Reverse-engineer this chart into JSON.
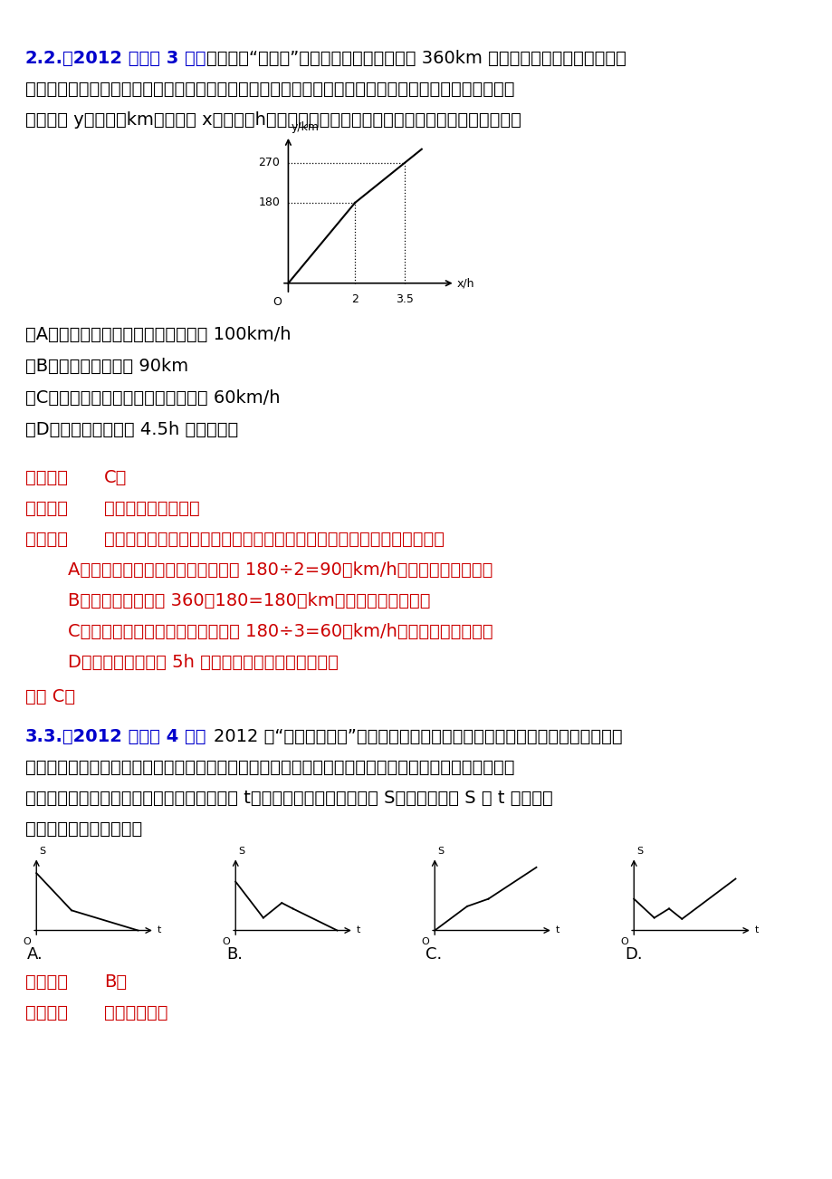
{
  "bg_color": "#ffffff",
  "q2_line1_blue": "2.（2012 天津市 3 分）",
  "q2_line1_black": "某电视台“走基层”栏目的一位记者乘汽车赴 360km 外的农村采访，全程的前一部",
  "q2_line2": "分为高速公路，后一部分为乡村公路．若汽车在高速公路和乡村公路上分别以某一速度匀速行驶，汽车行",
  "q2_line3": "驶的路程 y（单位：km）与时间 x（单位：h）之间的关系如图所示，则下列结论正确的是【　　】",
  "q2_options": [
    "（A）汽车在高速公路上的行驶速度为 100km/h",
    "（B）乡村公路总长为 90km",
    "（C）汽车在乡村公路上的行驶速度为 60km/h",
    "（D）该记者在出发后 4.5h 到达采访地"
  ],
  "q2_answer": "C。",
  "q2_kaodian": "函数的图象的分析。",
  "q2_fenxi": "根据函数的图象和已知条件对每一项分别进行分析，即可得出正确答案：",
  "q2_analysis_items": [
    "A、汽车在高速公路上的行驶速度为 180÷2=90（km/h），故本选项错误；",
    "B、乡村公路总长为 360－180=180（km），故本选项错误；",
    "C、汽车在乡村公路上的行驶速度为 180÷3=60（km/h），故本选项正确；",
    "D、该记者在出发后 5h 到达采访地，故本选项错误。"
  ],
  "q2_guoxuan": "故选 C。",
  "q3_line1_blue": "3.（2012 重庆市 4 分）",
  "q3_line1_black": "2012 年“国际攀岩比赛”在重庆举行．小丽从家出发开车前去观看，途中发现忘了",
  "q3_line2": "带门票，于是打电话让娈娈马上从家里送来，同时小丽也往回开，遇到娈娈后聊了一会儿，接着继续开车",
  "q3_line3": "前往比赛现场．设小丽从家出发后所用时间为 t，小丽与比赛现场的距离为 S．下面能反映 S 与 t 的函数关",
  "q3_line4": "系的大致图象是【　　】",
  "q3_answer": "B。",
  "q3_kaodian": "函数的图象。"
}
